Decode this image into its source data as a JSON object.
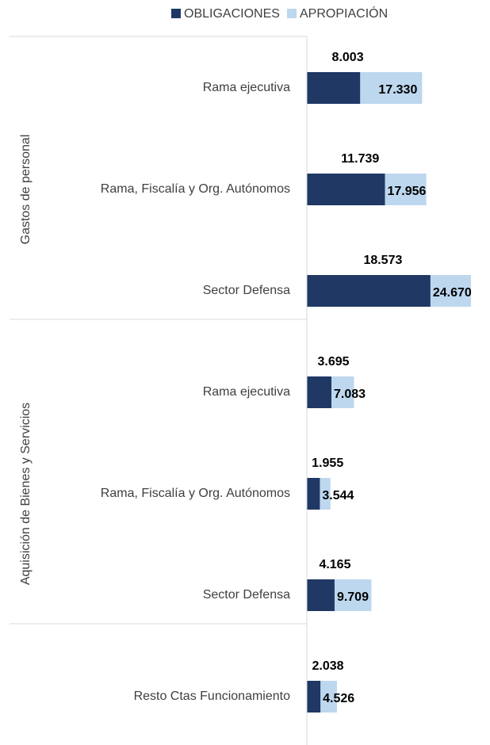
{
  "chart_data": {
    "type": "bar",
    "orientation": "horizontal",
    "overlap": true,
    "groups": [
      {
        "label": "Gastos de personal",
        "categories": [
          "Rama ejecutiva",
          "Rama, Fiscalía y Org. Autónomos",
          "Sector Defensa"
        ]
      },
      {
        "label": "Aquisición de Bienes y Servicios",
        "categories": [
          "Rama ejecutiva",
          "Rama, Fiscalía y Org. Autónomos",
          "Sector Defensa"
        ]
      },
      {
        "label": null,
        "categories": [
          "Resto Ctas Funcionamiento"
        ]
      }
    ],
    "series": [
      {
        "name": "OBLIGACIONES",
        "color": "#1f3864",
        "values": [
          8003,
          11739,
          18573,
          3695,
          1955,
          4165,
          2038
        ],
        "value_labels": [
          "8.003",
          "11.739",
          "18.573",
          "3.695",
          "1.955",
          "4.165",
          "2.038"
        ]
      },
      {
        "name": "APROPIACIÓN",
        "color": "#bdd7ee",
        "values": [
          17330,
          17956,
          24670,
          7083,
          3544,
          9709,
          4526
        ],
        "value_labels": [
          "17.330",
          "17.956",
          "24.670",
          "7.083",
          "3.544",
          "9.709",
          "4.526"
        ]
      }
    ],
    "legend": "top"
  }
}
